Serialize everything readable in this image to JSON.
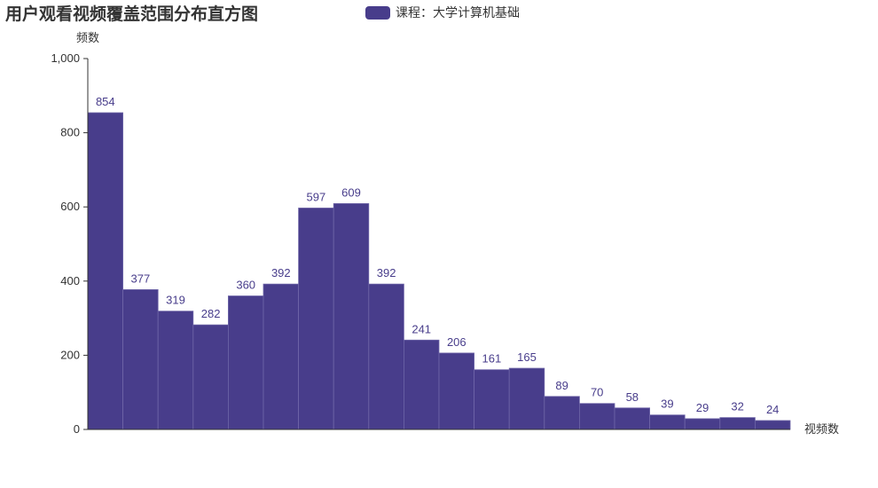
{
  "chart_data": {
    "type": "bar",
    "title": "用户观看视频覆盖范围分布直方图",
    "xlabel": "视频数",
    "ylabel": "频数",
    "ylim": [
      0,
      1000
    ],
    "yticks": [
      0,
      200,
      400,
      600,
      800,
      1000
    ],
    "ytick_labels": [
      "0",
      "200",
      "400",
      "600",
      "800",
      "1,000"
    ],
    "series": [
      {
        "name": "课程：大学计算机基础",
        "values": [
          854,
          377,
          319,
          282,
          360,
          392,
          597,
          609,
          392,
          241,
          206,
          161,
          165,
          89,
          70,
          58,
          39,
          29,
          32,
          24
        ]
      }
    ],
    "legend_position": "top-center",
    "grid": false,
    "colors": {
      "bar": "#483d8b",
      "bar_edge": "#6f66a8",
      "label": "#483d8b",
      "axis": "#333333"
    }
  }
}
